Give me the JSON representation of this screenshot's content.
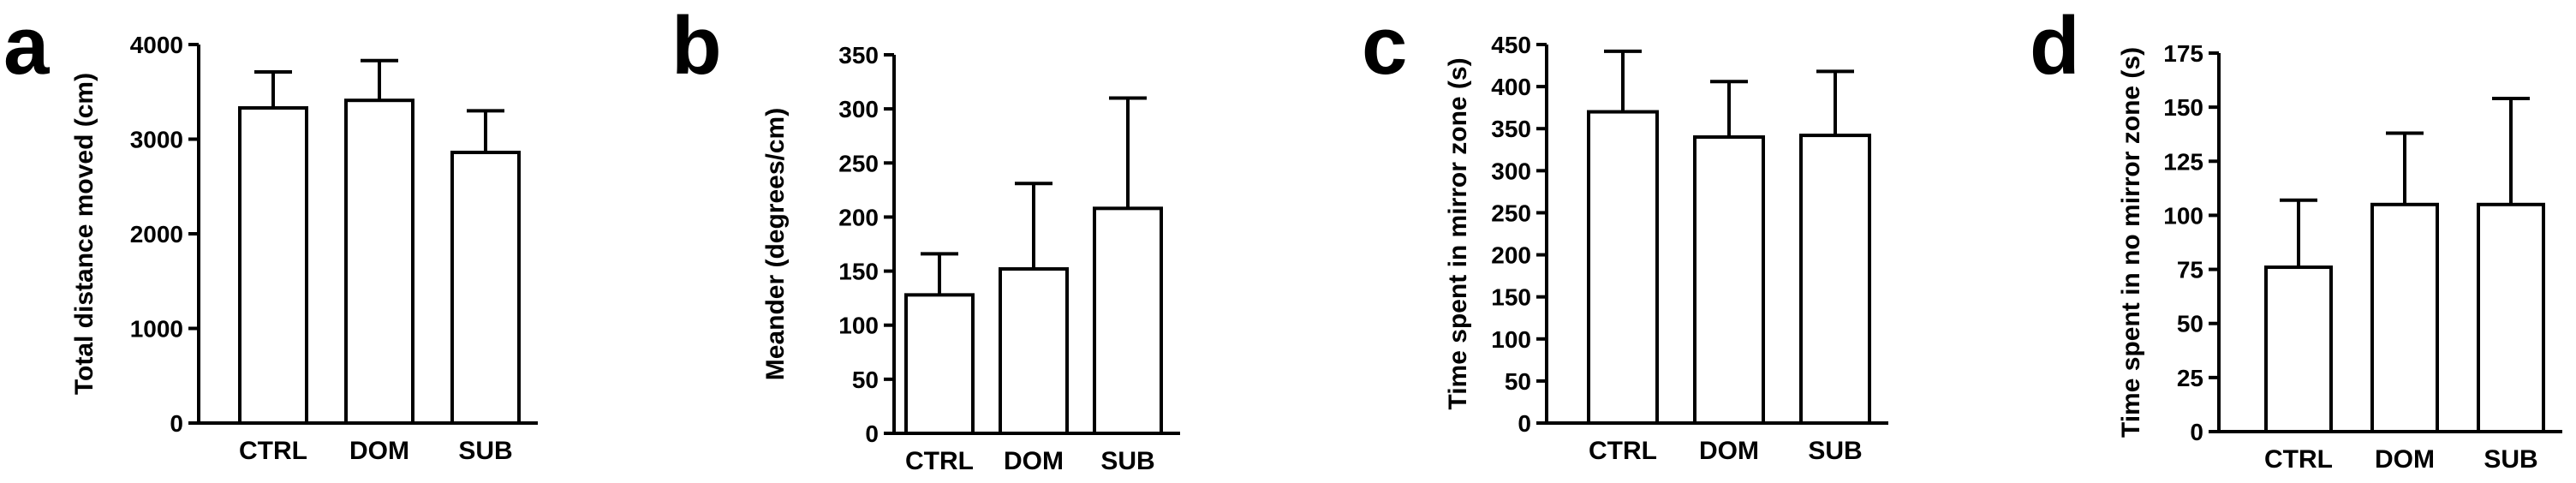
{
  "chart_data": [
    {
      "type": "bar",
      "panel": "a",
      "ylabel": "Total distance moved (cm)",
      "categories": [
        "CTRL",
        "DOM",
        "SUB"
      ],
      "values": [
        3330,
        3410,
        2860
      ],
      "error": [
        380,
        420,
        440
      ],
      "ylim": [
        0,
        4000
      ],
      "yticks": [
        "0",
        "1000",
        "2000",
        "3000",
        "4000"
      ],
      "grid": false
    },
    {
      "type": "bar",
      "panel": "b",
      "ylabel": "Meander (degrees/cm)",
      "categories": [
        "CTRL",
        "DOM",
        "SUB"
      ],
      "values": [
        128,
        152,
        208
      ],
      "error": [
        38,
        79,
        102
      ],
      "ylim": [
        0,
        350
      ],
      "yticks": [
        "0",
        "50",
        "100",
        "150",
        "200",
        "250",
        "300",
        "350"
      ],
      "grid": false
    },
    {
      "type": "bar",
      "panel": "c",
      "ylabel": "Time spent in mirror zone (s)",
      "categories": [
        "CTRL",
        "DOM",
        "SUB"
      ],
      "values": [
        370,
        340,
        342
      ],
      "error": [
        72,
        66,
        76
      ],
      "ylim": [
        0,
        450
      ],
      "yticks": [
        "0",
        "50",
        "100",
        "150",
        "200",
        "250",
        "300",
        "350",
        "400",
        "450"
      ],
      "grid": false
    },
    {
      "type": "bar",
      "panel": "d",
      "ylabel": "Time spent in no mirror zone (s)",
      "categories": [
        "CTRL",
        "DOM",
        "SUB"
      ],
      "values": [
        76,
        105,
        105
      ],
      "error": [
        31,
        33,
        49
      ],
      "ylim": [
        0,
        175
      ],
      "yticks": [
        "0",
        "25",
        "50",
        "75",
        "100",
        "125",
        "150",
        "175"
      ],
      "grid": false
    }
  ]
}
